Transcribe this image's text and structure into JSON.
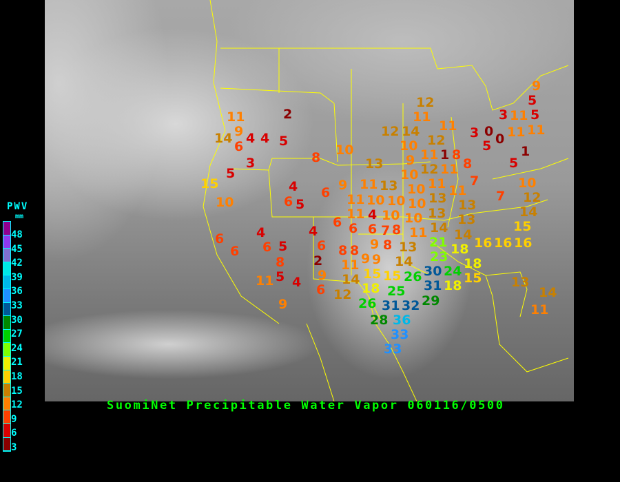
{
  "title": "SuomiNet Precipitable Water Vapor 060116/0500",
  "legend": {
    "title": "PWV",
    "unit": "mm",
    "ticks": [
      "48",
      "45",
      "42",
      "39",
      "36",
      "33",
      "30",
      "27",
      "24",
      "21",
      "18",
      "15",
      "12",
      "9",
      "6",
      "3"
    ],
    "colors": [
      "#900090",
      "#9038f0",
      "#8070d0",
      "#00e8e8",
      "#00b8e8",
      "#2090ff",
      "#005898",
      "#008800",
      "#00d000",
      "#80ff00",
      "#f0f000",
      "#ffd000",
      "#c88000",
      "#ff8000",
      "#ff4000",
      "#d80000",
      "#8b0000"
    ]
  },
  "border_color": "#ffff00",
  "stations": [
    11,
    9,
    14,
    4,
    6,
    4,
    5,
    2,
    3,
    5,
    15,
    10,
    8,
    10,
    4,
    6,
    5,
    6,
    9,
    6,
    6,
    4,
    6,
    5,
    8,
    5,
    11,
    4,
    9,
    4,
    6,
    2,
    6,
    6,
    8,
    8,
    9,
    6,
    4,
    6,
    8,
    7,
    9,
    8,
    13,
    9,
    9,
    14,
    11,
    15,
    15,
    26,
    30,
    31,
    25,
    14,
    18,
    12,
    31,
    32,
    29,
    26,
    36,
    33,
    28,
    33,
    21,
    23,
    18,
    24,
    18,
    13,
    14,
    16,
    16,
    16,
    18,
    15,
    13,
    11,
    10,
    10,
    12,
    11,
    11,
    3,
    0,
    0,
    3,
    11,
    5,
    11,
    11,
    5,
    1,
    5,
    12,
    14,
    12,
    8,
    8,
    13,
    10,
    11,
    1,
    9,
    12,
    11,
    13,
    10,
    11,
    7,
    11,
    11,
    7,
    10,
    12,
    14,
    13,
    10,
    10,
    10,
    10,
    13,
    11,
    11,
    14,
    13,
    15,
    9,
    5,
    14,
    11
  ]
}
